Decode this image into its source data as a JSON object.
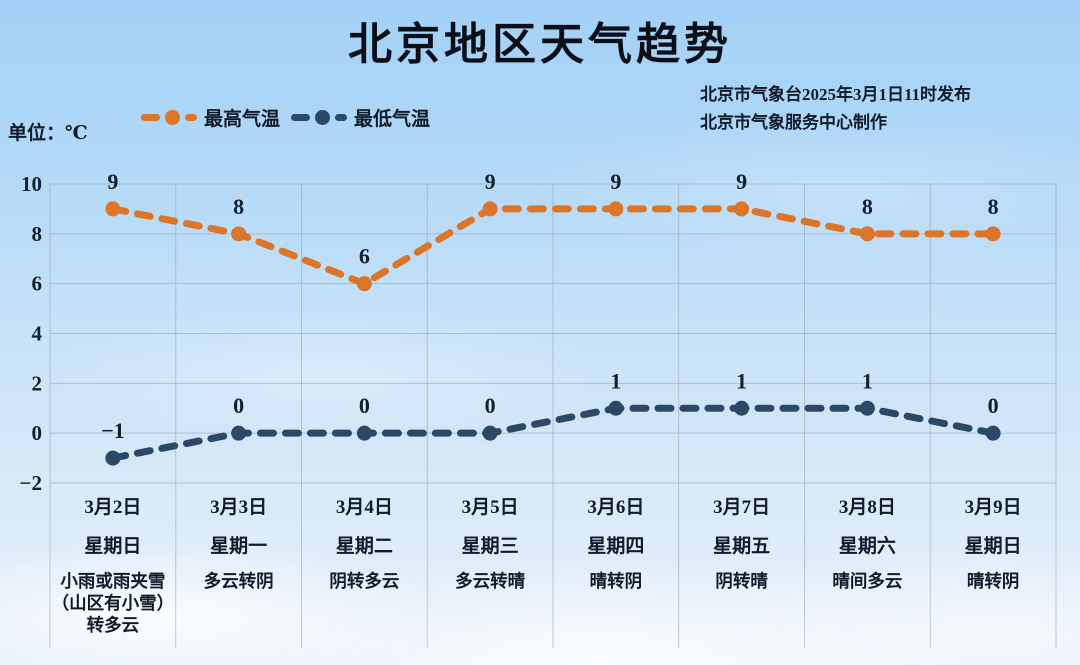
{
  "header": {
    "title": "北京地区天气趋势",
    "unit_label": "单位：℃",
    "attribution": [
      "北京市气象台2025年3月1日11时发布",
      "北京市气象服务中心制作"
    ]
  },
  "colors": {
    "high_series": "#DD7528",
    "low_series": "#2B4867",
    "grid": "#93A2B0",
    "text": "#101B2A",
    "sky_top": "#A3D0F6",
    "sky_bottom": "#E7F1FA"
  },
  "chart_data": {
    "type": "line",
    "title": "北京地区天气趋势",
    "unit": "℃",
    "line_style": "dashed-with-dots",
    "grid": true,
    "legend_position": "top-left",
    "ylim": [
      -2,
      10
    ],
    "yticks": [
      10,
      8,
      6,
      4,
      2,
      0,
      -2
    ],
    "categories": [
      {
        "date": "3月2日",
        "weekday": "星期日",
        "weather": "小雨或雨夹雪\n（山区有小雪）\n转多云"
      },
      {
        "date": "3月3日",
        "weekday": "星期一",
        "weather": "多云转阴"
      },
      {
        "date": "3月4日",
        "weekday": "星期二",
        "weather": "阴转多云"
      },
      {
        "date": "3月5日",
        "weekday": "星期三",
        "weather": "多云转晴"
      },
      {
        "date": "3月6日",
        "weekday": "星期四",
        "weather": "晴转阴"
      },
      {
        "date": "3月7日",
        "weekday": "星期五",
        "weather": "阴转晴"
      },
      {
        "date": "3月8日",
        "weekday": "星期六",
        "weather": "晴间多云"
      },
      {
        "date": "3月9日",
        "weekday": "星期日",
        "weather": "晴转阴"
      }
    ],
    "series": [
      {
        "name": "最高气温",
        "color": "#DD7528",
        "values": [
          9,
          8,
          6,
          9,
          9,
          9,
          8,
          8
        ]
      },
      {
        "name": "最低气温",
        "color": "#2B4867",
        "values": [
          -1,
          0,
          0,
          0,
          1,
          1,
          1,
          0
        ]
      }
    ]
  }
}
